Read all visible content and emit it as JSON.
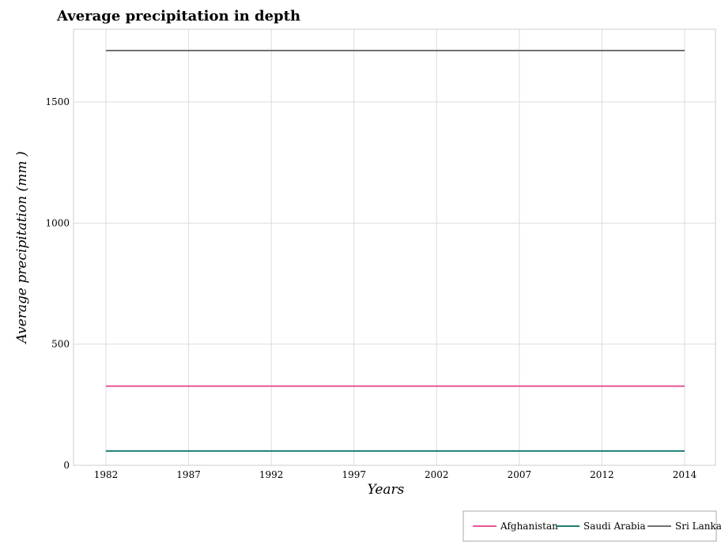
{
  "chart_data": {
    "type": "line",
    "title": "Average precipitation in depth",
    "xlabel": "Years",
    "ylabel": "Average precipitation (mm )",
    "categories": [
      "1982",
      "1987",
      "1992",
      "1997",
      "2002",
      "2007",
      "2012",
      "2014"
    ],
    "ylim": [
      0,
      1800
    ],
    "yticks": [
      0,
      500,
      1000,
      1500
    ],
    "grid": true,
    "legend_position": "bottom-right",
    "series": [
      {
        "name": "Afghanistan",
        "color": "#e8559a",
        "values": [
          327,
          327,
          327,
          327,
          327,
          327,
          327,
          327
        ]
      },
      {
        "name": "Saudi Arabia",
        "color": "#1a7f72",
        "values": [
          59,
          59,
          59,
          59,
          59,
          59,
          59,
          59
        ]
      },
      {
        "name": "Sri Lanka",
        "color": "#6e7275",
        "values": [
          1712,
          1712,
          1712,
          1712,
          1712,
          1712,
          1712,
          1712
        ]
      }
    ]
  }
}
